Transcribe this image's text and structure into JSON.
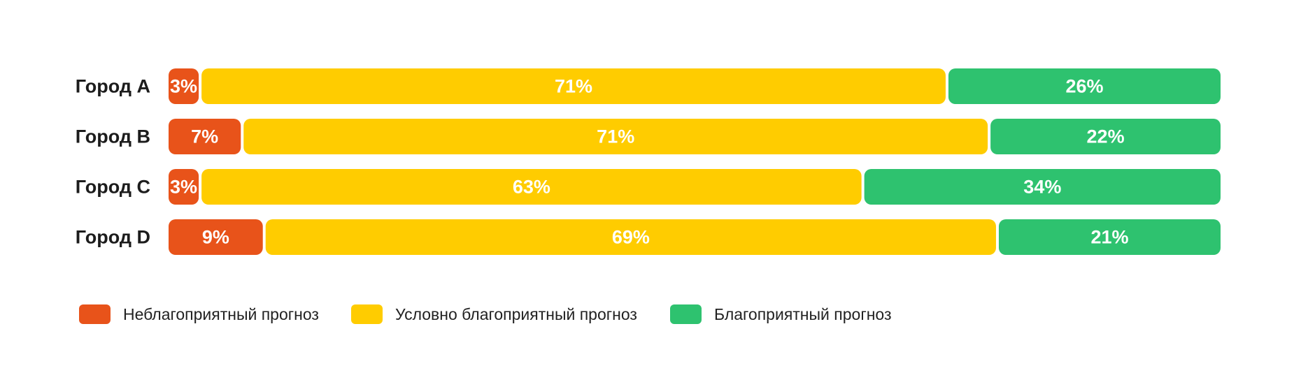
{
  "chart_data": {
    "type": "bar",
    "orientation": "horizontal",
    "stacked": true,
    "normalized": true,
    "categories": [
      "Город A",
      "Город B",
      "Город C",
      "Город D"
    ],
    "series": [
      {
        "name": "Неблагоприятный прогноз",
        "color": "#E8531A",
        "values": [
          3,
          7,
          3,
          9
        ],
        "labels": [
          "3%",
          "7%",
          "3%",
          "9%"
        ]
      },
      {
        "name": "Условно благоприятный прогноз",
        "color": "#FFCC00",
        "values": [
          71,
          71,
          63,
          69
        ],
        "labels": [
          "71%",
          "71%",
          "63%",
          "69%"
        ]
      },
      {
        "name": "Благоприятный прогноз",
        "color": "#2EC26F",
        "values": [
          26,
          22,
          34,
          21
        ],
        "labels": [
          "26%",
          "22%",
          "34%",
          "21%"
        ]
      }
    ],
    "legend_position": "bottom-left",
    "grid": false,
    "xlim": [
      0,
      100
    ]
  }
}
